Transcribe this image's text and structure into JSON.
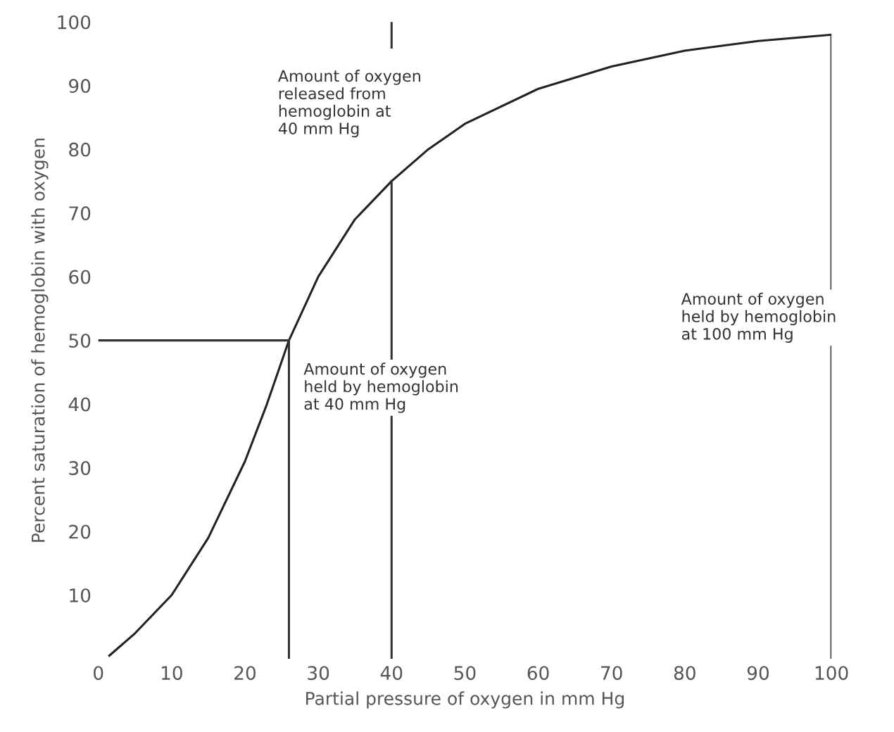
{
  "chart_data": {
    "type": "line",
    "xlabel": "Partial pressure of oxygen in mm Hg",
    "ylabel": "Percent saturation of hemoglobin with oxygen",
    "series": [
      {
        "color": "#222222",
        "x": [
          1.5,
          5,
          10,
          15,
          20,
          23,
          26,
          30,
          35,
          40,
          45,
          50,
          60,
          70,
          80,
          90,
          100
        ],
        "values": [
          0.5,
          4,
          10,
          19,
          31,
          40,
          50,
          60,
          69,
          75,
          80,
          84,
          89.5,
          93,
          95.5,
          97,
          98
        ]
      },
      {
        "color": "#333333",
        "x": [
          0,
          26
        ],
        "values": [
          50,
          50
        ]
      },
      {
        "color": "#333333",
        "x": [
          26,
          26
        ],
        "values": [
          0,
          50
        ]
      },
      {
        "color": "#333333",
        "x": [
          40,
          40
        ],
        "values": [
          0,
          75
        ]
      },
      {
        "color": "#333333",
        "x": [
          40,
          40
        ],
        "values": [
          96,
          100
        ]
      },
      {
        "color": "#333333",
        "x": [
          100,
          100
        ],
        "values": [
          0,
          98
        ]
      }
    ],
    "annotations": [
      "Amount of oxygen\nreleased from\nhemoglobin at\n40 mm Hg",
      "Amount of oxygen\nheld by hemoglobin\nat 40 mm Hg",
      "Amount of oxygen\nheld by hemoglobin\nat 100 mm Hg"
    ],
    "xlim": [
      0,
      100
    ],
    "ylim": [
      0,
      100
    ],
    "xticks": [
      0,
      10,
      20,
      30,
      40,
      50,
      60,
      70,
      80,
      90,
      100
    ],
    "yticks": [
      10,
      20,
      30,
      40,
      50,
      60,
      70,
      80,
      90,
      100
    ],
    "grid": false,
    "legend": false
  }
}
